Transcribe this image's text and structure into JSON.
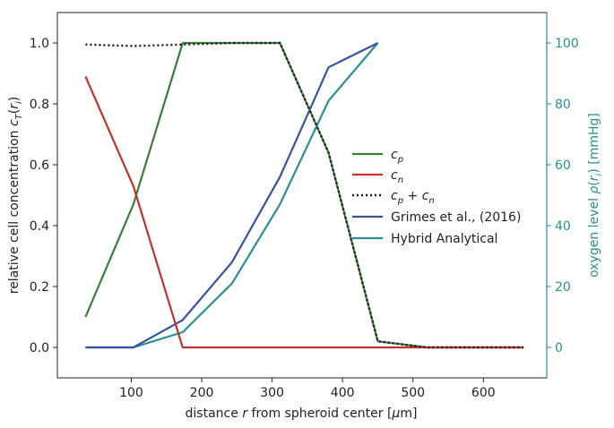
{
  "chart_data": {
    "type": "line",
    "xlabel": "distance r from spheroid center [μm]",
    "ylabel": "relative cell concentration c_T(r_i)",
    "ylabel_right": "oxygen level ρ(r_i) [mmHg]",
    "xlim": [
      -5,
      690
    ],
    "ylim": [
      -0.1,
      1.1
    ],
    "ylim_right": [
      -10,
      110
    ],
    "x_ticks": [
      100,
      200,
      300,
      400,
      500,
      600
    ],
    "y_ticks": [
      0.0,
      0.2,
      0.4,
      0.6,
      0.8,
      1.0
    ],
    "y_ticks_right": [
      0,
      20,
      40,
      60,
      80,
      100
    ],
    "legend_position": "center-right",
    "series": [
      {
        "name": "c_p",
        "axis": "left",
        "color": "#3a7d3a",
        "style": "solid",
        "x": [
          35,
          103,
          173,
          243,
          311,
          380,
          450,
          520,
          590,
          657
        ],
        "y": [
          0.1,
          0.47,
          1.0,
          1.0,
          1.0,
          0.64,
          0.02,
          0.0,
          0.0,
          0.0
        ]
      },
      {
        "name": "c_n",
        "axis": "left",
        "color": "#c0322b",
        "style": "solid",
        "x": [
          35,
          103,
          173,
          243,
          311,
          380,
          450,
          520,
          590,
          657
        ],
        "y": [
          0.89,
          0.53,
          0.0,
          0.0,
          0.0,
          0.0,
          0.0,
          0.0,
          0.0,
          0.0
        ]
      },
      {
        "name": "c_p + c_n",
        "axis": "left",
        "color": "#1a1a1a",
        "style": "dotted",
        "x": [
          35,
          103,
          173,
          243,
          311,
          380,
          450,
          520,
          590,
          657
        ],
        "y": [
          0.995,
          0.99,
          0.995,
          1.0,
          1.0,
          0.64,
          0.02,
          0.0,
          0.0,
          0.0
        ]
      },
      {
        "name": "Grimes et al., (2016)",
        "axis": "right",
        "color": "#3a52a3",
        "style": "solid",
        "x": [
          35,
          103,
          173,
          243,
          311,
          380,
          450
        ],
        "y": [
          0,
          0,
          9,
          28,
          56,
          92,
          100
        ]
      },
      {
        "name": "Hybrid Analytical",
        "axis": "right",
        "color": "#2a9090",
        "style": "solid",
        "x": [
          35,
          103,
          173,
          243,
          311,
          380,
          450
        ],
        "y": [
          0,
          0,
          5,
          21,
          47,
          81,
          100
        ]
      }
    ]
  }
}
